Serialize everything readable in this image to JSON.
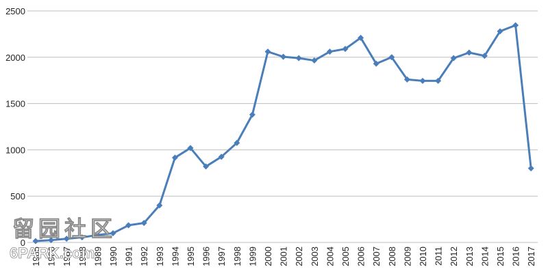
{
  "chart_data": {
    "type": "line",
    "categories": [
      "1985",
      "1986",
      "1987",
      "1988",
      "1989",
      "1990",
      "1991",
      "1992",
      "1993",
      "1994",
      "1995",
      "1996",
      "1997",
      "1998",
      "1999",
      "2000",
      "2001",
      "2002",
      "2003",
      "2004",
      "2005",
      "2006",
      "2007",
      "2008",
      "2009",
      "2010",
      "2011",
      "2012",
      "2013",
      "2014",
      "2015",
      "2016",
      "2017"
    ],
    "series": [
      {
        "color": "#4a7ebb",
        "values": [
          15,
          25,
          40,
          55,
          80,
          100,
          185,
          210,
          400,
          915,
          1020,
          820,
          925,
          1075,
          1380,
          2060,
          2005,
          1990,
          1965,
          2060,
          2090,
          2210,
          1930,
          2000,
          1760,
          1745,
          1745,
          1990,
          2050,
          2015,
          2280,
          2345,
          800
        ]
      }
    ],
    "ylim": [
      0,
      2500
    ],
    "yticks": [
      0,
      500,
      1000,
      1500,
      2000,
      2500
    ],
    "grid": true,
    "watermark": [
      "留园社区",
      "6PARK.com"
    ]
  }
}
